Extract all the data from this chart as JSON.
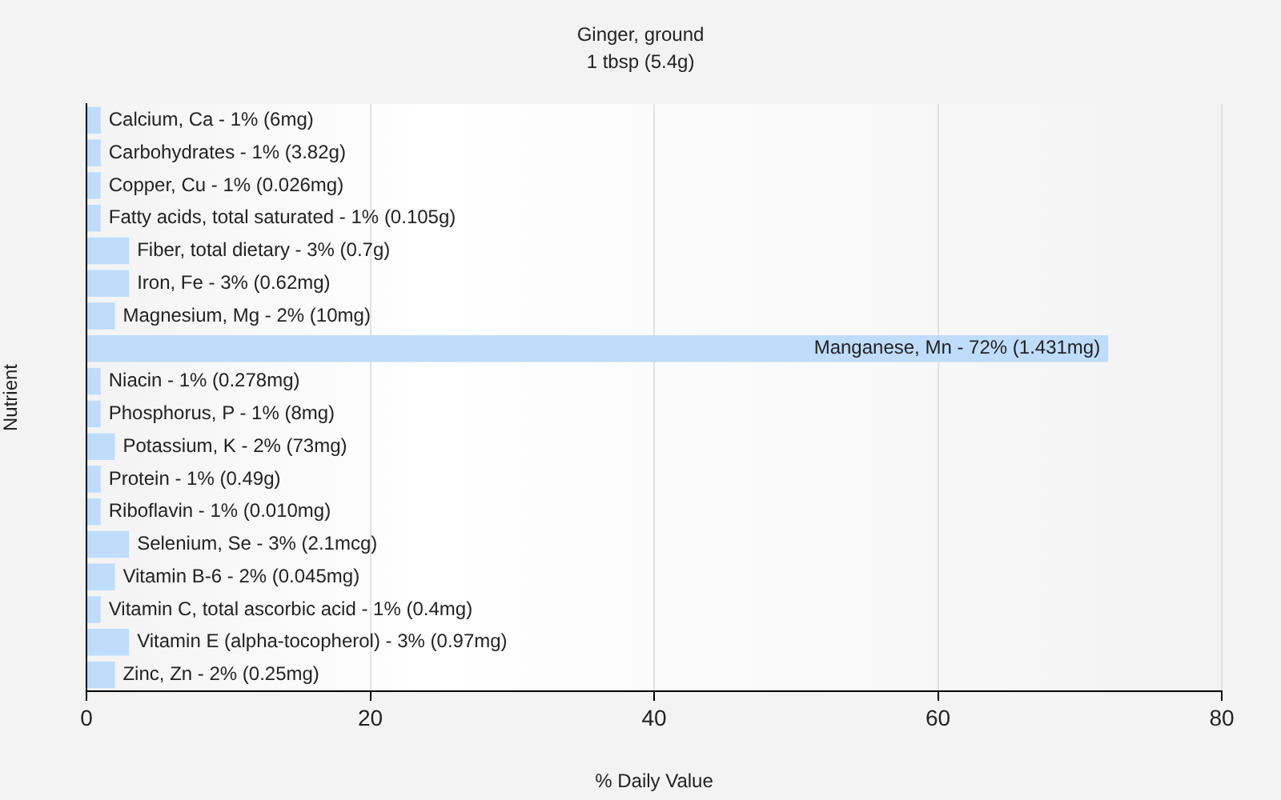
{
  "chart_data": {
    "type": "bar",
    "orientation": "horizontal",
    "title": "Ginger, ground",
    "subtitle": "1 tbsp (5.4g)",
    "xlabel": "% Daily Value",
    "ylabel": "Nutrient",
    "categories": [
      null,
      null,
      null,
      null,
      null,
      null,
      null,
      null,
      null,
      null,
      null,
      null,
      null,
      null,
      null,
      null,
      null,
      null
    ],
    "values": [
      1,
      1,
      1,
      1,
      3,
      3,
      2,
      72,
      1,
      1,
      2,
      1,
      1,
      3,
      2,
      1,
      3,
      2
    ],
    "annotations": [
      {
        "text": "Calcium, Ca - 1% (6mg)",
        "x": 1
      },
      {
        "text": "Carbohydrates - 1% (3.82g)",
        "x": 1
      },
      {
        "text": "Copper, Cu - 1% (0.026mg)",
        "x": 1
      },
      {
        "text": "Fatty acids, total saturated - 1% (0.105g)",
        "x": 1
      },
      {
        "text": "Fiber, total dietary - 3% (0.7g)",
        "x": 3
      },
      {
        "text": "Iron, Fe - 3% (0.62mg)",
        "x": 3
      },
      {
        "text": "Magnesium, Mg - 2% (10mg)",
        "x": 2
      },
      {
        "text": "Manganese, Mn - 72% (1.431mg)",
        "x": 72
      },
      {
        "text": "Niacin - 1% (0.278mg)",
        "x": 1
      },
      {
        "text": "Phosphorus, P - 1% (8mg)",
        "x": 1
      },
      {
        "text": "Potassium, K - 2% (73mg)",
        "x": 2
      },
      {
        "text": "Protein - 1% (0.49g)",
        "x": 1
      },
      {
        "text": "Riboflavin - 1% (0.010mg)",
        "x": 1
      },
      {
        "text": "Selenium, Se - 3% (2.1mcg)",
        "x": 3
      },
      {
        "text": "Vitamin B-6 - 2% (0.045mg)",
        "x": 2
      },
      {
        "text": "Vitamin C, total ascorbic acid - 1% (0.4mg)",
        "x": 1
      },
      {
        "text": "Vitamin E (alpha-tocopherol) - 3% (0.97mg)",
        "x": 3
      },
      {
        "text": "Zinc, Zn - 2% (0.25mg)",
        "x": 2
      }
    ],
    "color": "#bfdcfb",
    "xlim": [
      0,
      80
    ],
    "xticks": [
      0,
      20,
      40,
      60,
      80
    ],
    "grid": "x",
    "tick_labels": "x"
  }
}
